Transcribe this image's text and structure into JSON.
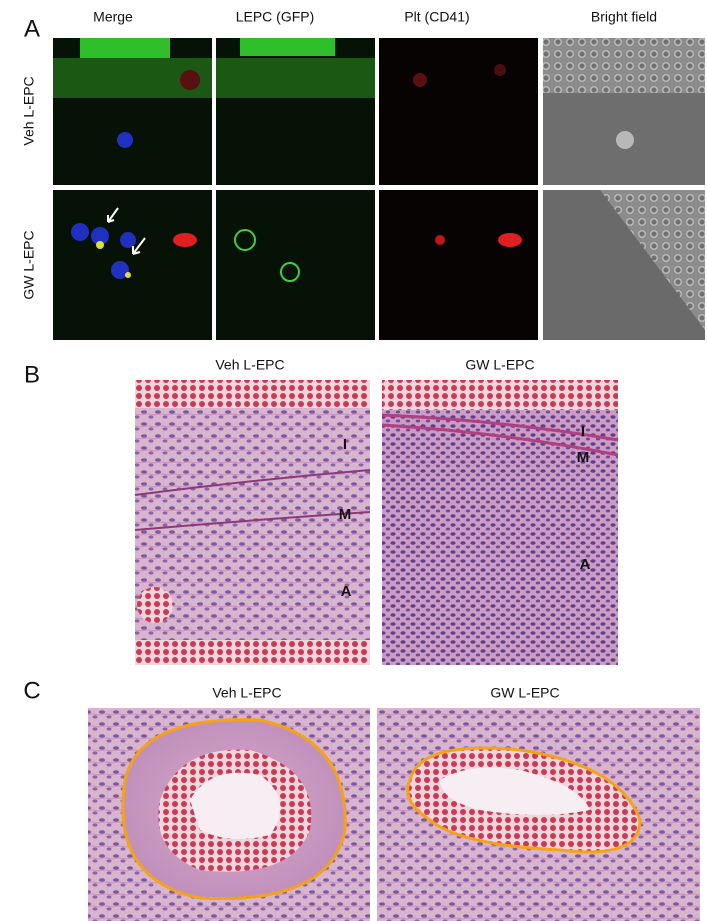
{
  "panel_a": {
    "label": "A",
    "columns": [
      "Merge",
      "LEPC (GFP)",
      "Plt (CD41)",
      "Bright field"
    ],
    "rows": [
      "Veh L-EPC",
      "GW L-EPC"
    ]
  },
  "panel_b": {
    "label": "B",
    "images": [
      {
        "title": "Veh L-EPC",
        "annotations": [
          "I",
          "M",
          "A"
        ]
      },
      {
        "title": "GW L-EPC",
        "annotations": [
          "I",
          "M",
          "A"
        ]
      }
    ]
  },
  "panel_c": {
    "label": "C",
    "images": [
      {
        "title": "Veh L-EPC"
      },
      {
        "title": "GW L-EPC"
      }
    ]
  }
}
